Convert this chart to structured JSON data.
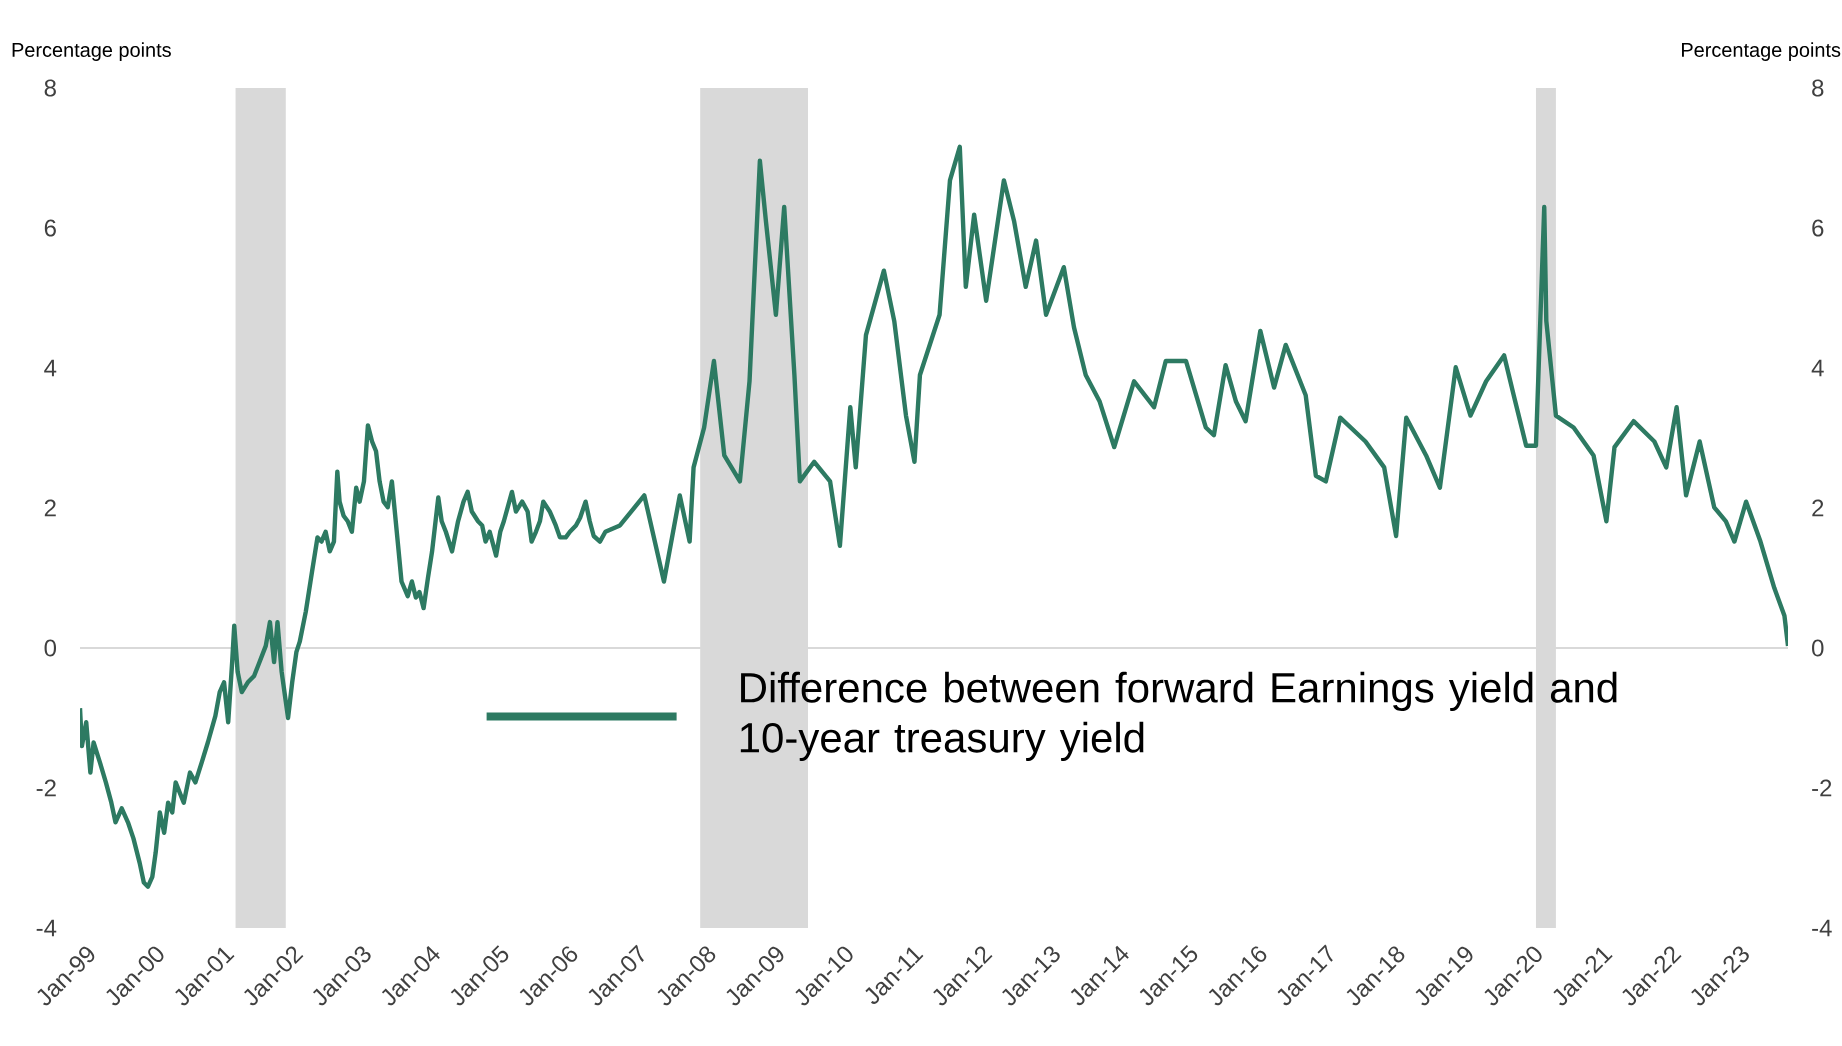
{
  "chart_data": {
    "type": "line",
    "ylabel": "Percentage points",
    "y2label": "Percentage points",
    "xlim": [
      "1999-01-01",
      "2023-10-15"
    ],
    "ylim": [
      -4,
      8
    ],
    "y2lim": [
      -4,
      8
    ],
    "xticks": [
      {
        "value": "1999-01",
        "label": "Jan-99"
      },
      {
        "value": "2000-01",
        "label": "Jan-00"
      },
      {
        "value": "2001-01",
        "label": "Jan-01"
      },
      {
        "value": "2002-01",
        "label": "Jan-02"
      },
      {
        "value": "2003-01",
        "label": "Jan-03"
      },
      {
        "value": "2004-01",
        "label": "Jan-04"
      },
      {
        "value": "2005-01",
        "label": "Jan-05"
      },
      {
        "value": "2006-01",
        "label": "Jan-06"
      },
      {
        "value": "2007-01",
        "label": "Jan-07"
      },
      {
        "value": "2008-01",
        "label": "Jan-08"
      },
      {
        "value": "2009-01",
        "label": "Jan-09"
      },
      {
        "value": "2010-01",
        "label": "Jan-10"
      },
      {
        "value": "2011-01",
        "label": "Jan-11"
      },
      {
        "value": "2012-01",
        "label": "Jan-12"
      },
      {
        "value": "2013-01",
        "label": "Jan-13"
      },
      {
        "value": "2014-01",
        "label": "Jan-14"
      },
      {
        "value": "2015-01",
        "label": "Jan-15"
      },
      {
        "value": "2016-01",
        "label": "Jan-16"
      },
      {
        "value": "2017-01",
        "label": "Jan-17"
      },
      {
        "value": "2018-01",
        "label": "Jan-18"
      },
      {
        "value": "2019-01",
        "label": "Jan-19"
      },
      {
        "value": "2020-01",
        "label": "Jan-20"
      },
      {
        "value": "2021-01",
        "label": "Jan-21"
      },
      {
        "value": "2022-01",
        "label": "Jan-22"
      },
      {
        "value": "2023-01",
        "label": "Jan-23"
      }
    ],
    "yticks": [
      -4,
      -2,
      0,
      2,
      4,
      6,
      8
    ],
    "y2ticks": [
      -4,
      -2,
      0,
      2,
      4,
      6,
      8
    ],
    "grid": false,
    "legend": "bottom",
    "marker": "none",
    "line_style": "solid",
    "ref_lines": [
      {
        "axis": "y",
        "value": 0,
        "color": "#d9d9d9"
      }
    ],
    "bands": [
      {
        "axis": "x",
        "from": "2001-04-05",
        "to": "2001-12-27",
        "color": "#d9d9d9"
      },
      {
        "axis": "x",
        "from": "2008-01-01",
        "to": "2009-07-26",
        "color": "#d9d9d9"
      },
      {
        "axis": "x",
        "from": "2020-02-17",
        "to": "2020-06-02",
        "color": "#d9d9d9"
      }
    ],
    "series": [
      {
        "name": "Difference between forward Earnings yield and 10-year treasury yield",
        "color": "#2d7a62",
        "x": [
          "1999-01-01",
          "1999-01-11",
          "1999-02-03",
          "1999-02-25",
          "1999-03-14",
          "1999-04-16",
          "1999-05-18",
          "1999-06-16",
          "1999-07-08",
          "1999-08-10",
          "1999-09-12",
          "1999-10-11",
          "1999-11-13",
          "1999-12-05",
          "1999-12-27",
          "2000-01-19",
          "2000-02-06",
          "2000-02-28",
          "2000-03-22",
          "2000-04-12",
          "2000-05-04",
          "2000-05-22",
          "2000-07-04",
          "2000-08-06",
          "2000-09-04",
          "2000-10-08",
          "2000-11-09",
          "2000-12-19",
          "2001-01-11",
          "2001-02-03",
          "2001-02-25",
          "2001-03-18",
          "2001-03-29",
          "2001-04-16",
          "2001-05-08",
          "2001-06-09",
          "2001-07-12",
          "2001-08-10",
          "2001-09-12",
          "2001-10-04",
          "2001-10-26",
          "2001-11-13",
          "2001-12-05",
          "2002-01-08",
          "2002-01-30",
          "2002-02-21",
          "2002-03-11",
          "2002-04-12",
          "2002-05-15",
          "2002-06-13",
          "2002-07-04",
          "2002-07-26",
          "2002-08-17",
          "2002-09-08",
          "2002-09-26",
          "2002-10-08",
          "2002-10-29",
          "2002-11-20",
          "2002-12-12",
          "2003-01-04",
          "2003-01-22",
          "2003-02-14",
          "2003-03-07",
          "2003-03-29",
          "2003-04-19",
          "2003-05-08",
          "2003-05-29",
          "2003-06-20",
          "2003-07-12",
          "2003-08-14",
          "2003-09-01",
          "2003-10-04",
          "2003-10-26",
          "2003-11-16",
          "2003-12-05",
          "2003-12-27",
          "2004-01-19",
          "2004-02-10",
          "2004-03-14",
          "2004-04-01",
          "2004-04-23",
          "2004-05-26",
          "2004-06-27",
          "2004-07-26",
          "2004-08-17",
          "2004-09-08",
          "2004-10-11",
          "2004-11-02",
          "2004-11-20",
          "2004-12-12",
          "2005-01-15",
          "2005-02-06",
          "2005-02-25",
          "2005-04-09",
          "2005-04-30",
          "2005-06-02",
          "2005-07-01",
          "2005-07-22",
          "2005-08-14",
          "2005-09-04",
          "2005-09-22",
          "2005-10-26",
          "2005-11-27",
          "2005-12-19",
          "2006-01-19",
          "2006-02-10",
          "2006-03-14",
          "2006-04-05",
          "2006-05-04",
          "2006-05-26",
          "2006-06-16",
          "2006-07-19",
          "2006-08-17",
          "2006-11-02",
          "2007-03-11",
          "2007-06-23",
          "2007-09-15",
          "2007-11-06",
          "2007-11-27",
          "2008-01-22",
          "2008-03-14",
          "2008-05-08",
          "2008-07-30",
          "2008-09-19",
          "2008-11-13",
          "2008-12-15",
          "2009-02-06",
          "2009-03-22",
          "2009-05-15",
          "2009-06-13",
          "2009-08-28",
          "2009-11-20",
          "2010-01-11",
          "2010-03-07",
          "2010-04-05",
          "2010-05-29",
          "2010-09-01",
          "2010-10-26",
          "2010-12-27",
          "2011-02-10",
          "2011-03-11",
          "2011-06-23",
          "2011-08-17",
          "2011-10-08",
          "2011-11-09",
          "2011-12-23",
          "2012-02-25",
          "2012-05-29",
          "2012-07-22",
          "2012-09-22",
          "2012-11-16",
          "2013-01-08",
          "2013-04-12",
          "2013-06-05",
          "2013-08-06",
          "2013-10-19",
          "2014-01-04",
          "2014-04-19",
          "2014-08-03",
          "2014-10-04",
          "2015-01-19",
          "2015-05-04",
          "2015-06-16",
          "2015-08-17",
          "2015-10-11",
          "2015-12-01",
          "2016-02-17",
          "2016-04-30",
          "2016-07-01",
          "2016-10-15",
          "2016-12-08",
          "2017-01-30",
          "2017-04-16",
          "2017-08-28",
          "2017-12-05",
          "2018-02-06",
          "2018-04-01",
          "2018-07-15",
          "2018-09-26",
          "2018-12-19",
          "2019-03-07",
          "2019-05-29",
          "2019-09-01",
          "2019-10-22",
          "2019-12-27",
          "2020-02-17",
          "2020-04-01",
          "2020-04-12",
          "2020-06-02",
          "2020-09-04",
          "2020-12-19",
          "2021-02-25",
          "2021-04-09",
          "2021-07-19",
          "2021-11-06",
          "2022-01-08",
          "2022-03-04",
          "2022-04-23",
          "2022-07-04",
          "2022-09-19",
          "2022-11-20",
          "2023-01-04",
          "2023-03-07",
          "2023-05-22",
          "2023-08-03",
          "2023-09-26",
          "2023-10-15"
        ],
        "values": [
          -0.86,
          -1.4,
          -1.06,
          -1.78,
          -1.35,
          -1.63,
          -1.92,
          -2.21,
          -2.49,
          -2.29,
          -2.49,
          -2.72,
          -3.07,
          -3.35,
          -3.41,
          -3.27,
          -2.92,
          -2.35,
          -2.64,
          -2.21,
          -2.35,
          -1.92,
          -2.21,
          -1.78,
          -1.92,
          -1.63,
          -1.35,
          -0.97,
          -0.63,
          -0.49,
          -1.06,
          -0.2,
          0.32,
          -0.34,
          -0.63,
          -0.49,
          -0.4,
          -0.2,
          0.03,
          0.37,
          -0.2,
          0.37,
          -0.34,
          -1.0,
          -0.49,
          -0.06,
          0.09,
          0.52,
          1.09,
          1.58,
          1.52,
          1.66,
          1.38,
          1.52,
          2.52,
          2.09,
          1.89,
          1.81,
          1.66,
          2.29,
          2.09,
          2.38,
          3.18,
          2.95,
          2.81,
          2.38,
          2.09,
          2.01,
          2.38,
          1.46,
          0.95,
          0.74,
          0.95,
          0.72,
          0.8,
          0.57,
          1.0,
          1.38,
          2.15,
          1.81,
          1.66,
          1.38,
          1.81,
          2.09,
          2.23,
          1.95,
          1.81,
          1.75,
          1.52,
          1.66,
          1.32,
          1.66,
          1.81,
          2.23,
          1.95,
          2.09,
          1.95,
          1.52,
          1.66,
          1.81,
          2.09,
          1.95,
          1.75,
          1.58,
          1.58,
          1.66,
          1.75,
          1.86,
          2.09,
          1.81,
          1.6,
          1.52,
          1.66,
          1.75,
          2.18,
          0.95,
          2.18,
          1.52,
          2.58,
          3.15,
          4.1,
          2.75,
          2.38,
          3.81,
          6.96,
          6.1,
          4.76,
          6.3,
          3.9,
          2.38,
          2.66,
          2.38,
          1.46,
          3.44,
          2.58,
          4.47,
          5.39,
          4.67,
          3.32,
          2.66,
          3.9,
          4.76,
          6.68,
          7.16,
          5.16,
          6.19,
          4.96,
          6.68,
          6.1,
          5.16,
          5.82,
          4.76,
          5.44,
          4.58,
          3.9,
          3.52,
          2.87,
          3.81,
          3.44,
          4.1,
          4.1,
          3.15,
          3.04,
          4.04,
          3.52,
          3.24,
          4.53,
          3.72,
          4.33,
          3.61,
          2.46,
          2.38,
          3.29,
          2.95,
          2.58,
          1.6,
          3.29,
          2.75,
          2.29,
          4.01,
          3.32,
          3.81,
          4.18,
          3.61,
          2.89,
          2.89,
          6.3,
          4.67,
          3.32,
          3.15,
          2.75,
          1.81,
          2.87,
          3.24,
          2.95,
          2.58,
          3.44,
          2.18,
          2.95,
          2.01,
          1.81,
          1.52,
          2.09,
          1.52,
          0.86,
          0.46,
          0.03
        ]
      }
    ]
  }
}
